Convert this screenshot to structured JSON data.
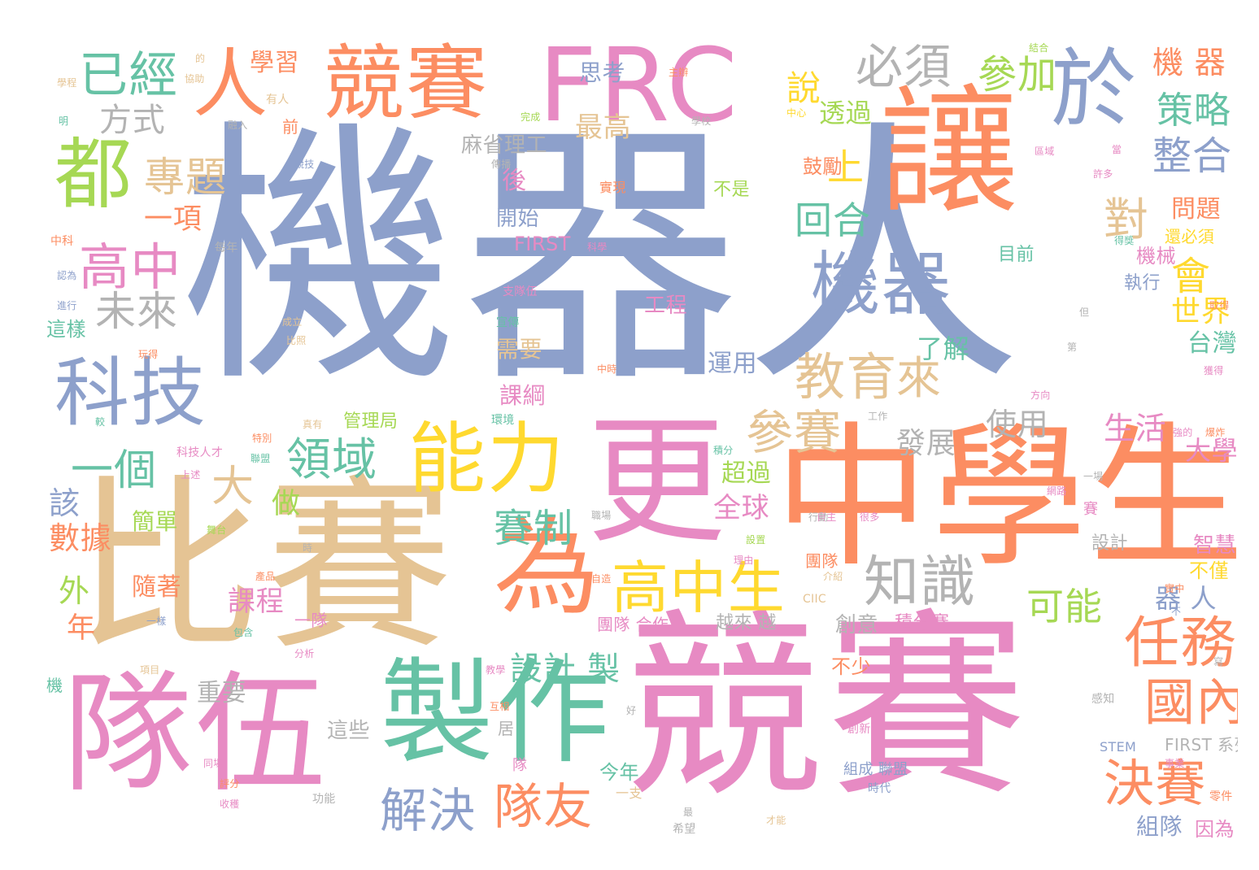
{
  "palette": {
    "blue": "#8da0cb",
    "orange": "#fc8d62",
    "pink": "#e78ac3",
    "green": "#66c2a5",
    "tan": "#e5c494",
    "yellow": "#ffd92f",
    "lime": "#a6d854",
    "gray": "#b3b3b3"
  },
  "words": [
    {
      "text": "機器人",
      "color": "blue"
    },
    {
      "text": "中學生",
      "color": "orange"
    },
    {
      "text": "比賽",
      "color": "tan"
    },
    {
      "text": "競賽",
      "color": "pink"
    },
    {
      "text": "隊伍",
      "color": "pink"
    },
    {
      "text": "讓",
      "color": "orange"
    },
    {
      "text": "人",
      "color": "orange"
    },
    {
      "text": "競賽",
      "color": "orange"
    },
    {
      "text": "FRC",
      "color": "pink"
    },
    {
      "text": "更",
      "color": "pink"
    },
    {
      "text": "製作",
      "color": "green"
    },
    {
      "text": "為",
      "color": "orange"
    },
    {
      "text": "能力",
      "color": "yellow"
    },
    {
      "text": "科技",
      "color": "blue"
    },
    {
      "text": "機器",
      "color": "blue"
    },
    {
      "text": "於",
      "color": "blue"
    },
    {
      "text": "都",
      "color": "lime"
    },
    {
      "text": "已經",
      "color": "green"
    },
    {
      "text": "必須",
      "color": "gray"
    },
    {
      "text": "高中生",
      "color": "yellow"
    },
    {
      "text": "高中",
      "color": "pink"
    },
    {
      "text": "知識",
      "color": "gray"
    },
    {
      "text": "教育",
      "color": "tan"
    },
    {
      "text": "任務",
      "color": "orange"
    },
    {
      "text": "國內",
      "color": "orange"
    },
    {
      "text": "決賽",
      "color": "orange"
    },
    {
      "text": "參賽",
      "color": "tan"
    },
    {
      "text": "隊友",
      "color": "orange"
    },
    {
      "text": "解決",
      "color": "blue"
    },
    {
      "text": "一個",
      "color": "green"
    },
    {
      "text": "領域",
      "color": "green"
    },
    {
      "text": "專題",
      "color": "tan"
    },
    {
      "text": "未來",
      "color": "gray"
    },
    {
      "text": "整合",
      "color": "blue"
    },
    {
      "text": "策略",
      "color": "green"
    },
    {
      "text": "參加",
      "color": "lime"
    },
    {
      "text": "來",
      "color": "tan"
    },
    {
      "text": "對",
      "color": "tan"
    },
    {
      "text": "回合",
      "color": "green"
    },
    {
      "text": "賽制",
      "color": "green"
    },
    {
      "text": "可能",
      "color": "lime"
    },
    {
      "text": "會",
      "color": "yellow"
    },
    {
      "text": "方式",
      "color": "gray"
    },
    {
      "text": "一項",
      "color": "orange"
    },
    {
      "text": "機 器",
      "color": "orange"
    },
    {
      "text": "上",
      "color": "yellow"
    },
    {
      "text": "說",
      "color": "yellow"
    },
    {
      "text": "大",
      "color": "tan"
    },
    {
      "text": "使用",
      "color": "gray"
    },
    {
      "text": "發展",
      "color": "gray"
    },
    {
      "text": "設計 製",
      "color": "green"
    },
    {
      "text": "生活",
      "color": "pink"
    },
    {
      "text": "最高",
      "color": "tan"
    },
    {
      "text": "透過",
      "color": "lime"
    },
    {
      "text": "思考",
      "color": "blue"
    },
    {
      "text": "麻省理工",
      "color": "gray"
    },
    {
      "text": "學習",
      "color": "orange"
    },
    {
      "text": "全球",
      "color": "pink"
    },
    {
      "text": "超過",
      "color": "lime"
    },
    {
      "text": "做",
      "color": "lime"
    },
    {
      "text": "器 人",
      "color": "blue"
    },
    {
      "text": "世界",
      "color": "yellow"
    },
    {
      "text": "大學",
      "color": "pink"
    },
    {
      "text": "台灣",
      "color": "green"
    },
    {
      "text": "問題",
      "color": "orange"
    },
    {
      "text": "了解",
      "color": "green"
    },
    {
      "text": "運用",
      "color": "blue"
    },
    {
      "text": "課綱",
      "color": "pink"
    },
    {
      "text": "需要",
      "color": "tan"
    },
    {
      "text": "工程",
      "color": "pink"
    },
    {
      "text": "開始",
      "color": "blue"
    },
    {
      "text": "後",
      "color": "pink"
    },
    {
      "text": "FIRST",
      "color": "pink"
    },
    {
      "text": "鼓勵",
      "color": "orange"
    },
    {
      "text": "不是",
      "color": "lime"
    },
    {
      "text": "機械",
      "color": "pink"
    },
    {
      "text": "執行",
      "color": "blue"
    },
    {
      "text": "目前",
      "color": "green"
    },
    {
      "text": "還必須",
      "color": "yellow"
    },
    {
      "text": "數據",
      "color": "orange"
    },
    {
      "text": "簡單",
      "color": "lime"
    },
    {
      "text": "該",
      "color": "blue"
    },
    {
      "text": "外",
      "color": "lime"
    },
    {
      "text": "年",
      "color": "orange"
    },
    {
      "text": "隨著",
      "color": "orange"
    },
    {
      "text": "課程",
      "color": "pink"
    },
    {
      "text": "重要",
      "color": "gray"
    },
    {
      "text": "管理局",
      "color": "lime"
    },
    {
      "text": "團隊",
      "color": "orange"
    },
    {
      "text": "一隊",
      "color": "pink"
    },
    {
      "text": "團隊 合作",
      "color": "pink"
    },
    {
      "text": "越來 越",
      "color": "gray"
    },
    {
      "text": "創意",
      "color": "gray"
    },
    {
      "text": "積分賽",
      "color": "pink"
    },
    {
      "text": "不少",
      "color": "orange"
    },
    {
      "text": "這些",
      "color": "gray"
    },
    {
      "text": "今年",
      "color": "green"
    },
    {
      "text": "一支",
      "color": "tan"
    },
    {
      "text": "組成 聯盟",
      "color": "blue"
    },
    {
      "text": "組隊",
      "color": "blue"
    },
    {
      "text": "因為",
      "color": "pink"
    },
    {
      "text": "不僅",
      "color": "yellow"
    },
    {
      "text": "智慧",
      "color": "pink"
    },
    {
      "text": "設計",
      "color": "gray"
    },
    {
      "text": "FIRST 系列",
      "color": "gray"
    },
    {
      "text": "STEM",
      "color": "blue"
    },
    {
      "text": "這樣",
      "color": "green"
    },
    {
      "text": "實現",
      "color": "orange"
    },
    {
      "text": "賽",
      "color": "pink"
    },
    {
      "text": "的",
      "color": "tan"
    },
    {
      "text": "有人",
      "color": "tan"
    },
    {
      "text": "前",
      "color": "orange"
    },
    {
      "text": "中科",
      "color": "orange"
    },
    {
      "text": "每年",
      "color": "gray"
    },
    {
      "text": "機",
      "color": "green"
    },
    {
      "text": "科技人才",
      "color": "pink"
    },
    {
      "text": "成立",
      "color": "tan"
    },
    {
      "text": "宣傳",
      "color": "green"
    },
    {
      "text": "支隊伍",
      "color": "pink"
    },
    {
      "text": "環境",
      "color": "green"
    },
    {
      "text": "中時",
      "color": "orange"
    },
    {
      "text": "自主",
      "color": "pink"
    },
    {
      "text": "很多",
      "color": "pink"
    },
    {
      "text": "介紹",
      "color": "tan"
    },
    {
      "text": "自造",
      "color": "orange"
    },
    {
      "text": "CIIC",
      "color": "tan"
    },
    {
      "text": "行動",
      "color": "gray"
    },
    {
      "text": "創新",
      "color": "pink"
    },
    {
      "text": "時代",
      "color": "blue"
    },
    {
      "text": "功能",
      "color": "gray"
    },
    {
      "text": "希望",
      "color": "gray"
    },
    {
      "text": "才能",
      "color": "tan"
    },
    {
      "text": "零件",
      "color": "orange"
    },
    {
      "text": "感知",
      "color": "gray"
    },
    {
      "text": "好",
      "color": "gray"
    },
    {
      "text": "獲得",
      "color": "pink"
    },
    {
      "text": "中心",
      "color": "yellow"
    },
    {
      "text": "完成",
      "color": "lime"
    },
    {
      "text": "學校",
      "color": "gray"
    },
    {
      "text": "主辦",
      "color": "orange"
    },
    {
      "text": "結合",
      "color": "lime"
    },
    {
      "text": "區域",
      "color": "pink"
    },
    {
      "text": "許多",
      "color": "pink"
    },
    {
      "text": "科學",
      "color": "pink"
    },
    {
      "text": "取得",
      "color": "orange"
    },
    {
      "text": "下",
      "color": "blue"
    },
    {
      "text": "方向",
      "color": "pink"
    },
    {
      "text": "工作",
      "color": "gray"
    },
    {
      "text": "強的",
      "color": "pink"
    },
    {
      "text": "爆炸",
      "color": "orange"
    },
    {
      "text": "一場",
      "color": "gray"
    },
    {
      "text": "實中",
      "color": "orange"
    },
    {
      "text": "不",
      "color": "blue"
    },
    {
      "text": "時",
      "color": "gray"
    },
    {
      "text": "同場",
      "color": "pink"
    },
    {
      "text": "評分",
      "color": "orange"
    },
    {
      "text": "收穫",
      "color": "pink"
    },
    {
      "text": "包含",
      "color": "green"
    },
    {
      "text": "分析",
      "color": "pink"
    },
    {
      "text": "教學",
      "color": "pink"
    },
    {
      "text": "項目",
      "color": "tan"
    },
    {
      "text": "互相",
      "color": "orange"
    },
    {
      "text": "居",
      "color": "gray"
    },
    {
      "text": "隊",
      "color": "pink"
    },
    {
      "text": "最",
      "color": "gray"
    },
    {
      "text": "學程",
      "color": "tan"
    },
    {
      "text": "協助",
      "color": "tan"
    },
    {
      "text": "融入",
      "color": "gray"
    },
    {
      "text": "競技",
      "color": "blue"
    },
    {
      "text": "傳播",
      "color": "gray"
    },
    {
      "text": "明",
      "color": "green"
    },
    {
      "text": "認為",
      "color": "blue"
    },
    {
      "text": "進行",
      "color": "blue"
    },
    {
      "text": "玩得",
      "color": "orange"
    },
    {
      "text": "較",
      "color": "green"
    },
    {
      "text": "特別",
      "color": "orange"
    },
    {
      "text": "上述",
      "color": "pink"
    },
    {
      "text": "聯盟",
      "color": "green"
    },
    {
      "text": "舞台",
      "color": "lime"
    },
    {
      "text": "真有",
      "color": "tan"
    },
    {
      "text": "比照",
      "color": "tan"
    },
    {
      "text": "積分",
      "color": "green"
    },
    {
      "text": "理由",
      "color": "pink"
    },
    {
      "text": "產品",
      "color": "orange"
    },
    {
      "text": "職場",
      "color": "gray"
    },
    {
      "text": "一樣",
      "color": "blue"
    },
    {
      "text": "設置",
      "color": "lime"
    },
    {
      "text": "網路",
      "color": "pink"
    },
    {
      "text": "得獎",
      "color": "green"
    },
    {
      "text": "事業",
      "color": "pink"
    },
    {
      "text": "但",
      "color": "gray"
    },
    {
      "text": "第",
      "color": "gray"
    },
    {
      "text": "寫",
      "color": "gray"
    },
    {
      "text": "當",
      "color": "pink"
    }
  ]
}
